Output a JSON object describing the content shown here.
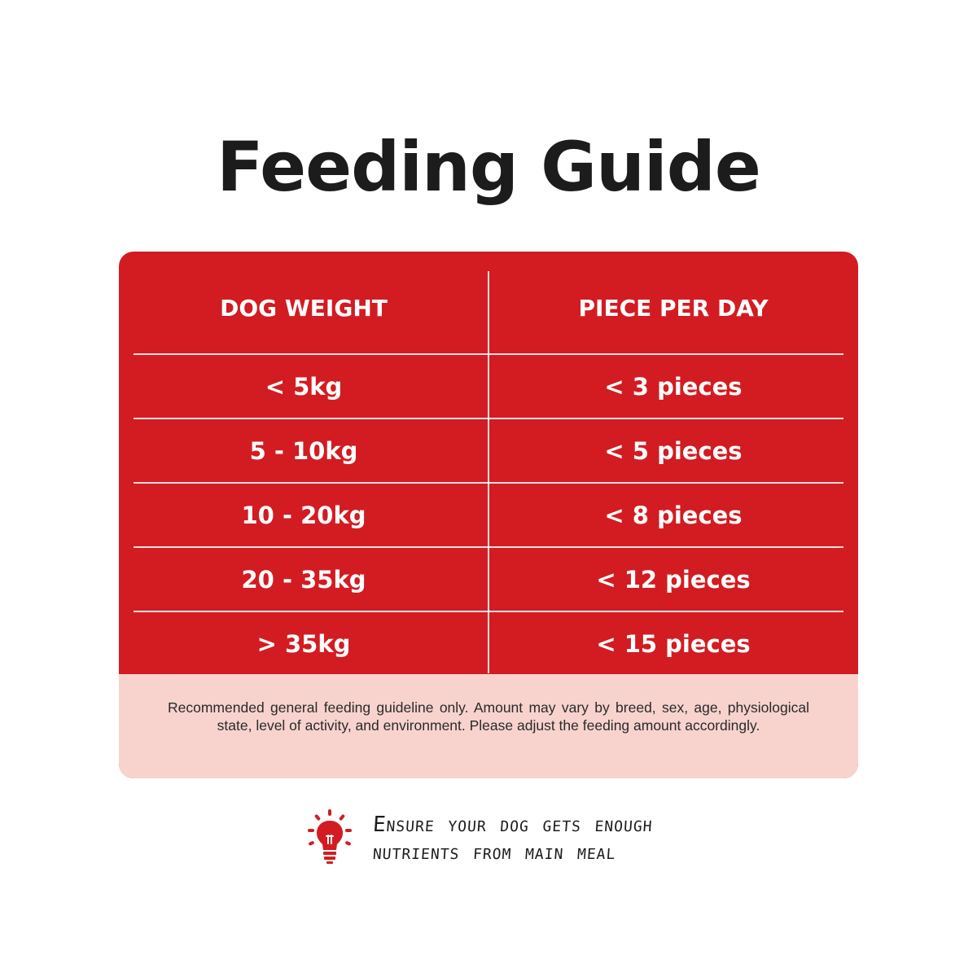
{
  "title": "Feeding Guide",
  "table": {
    "headers": [
      "DOG WEIGHT",
      "PIECE PER DAY"
    ],
    "rows": [
      [
        "< 5kg",
        "< 3 pieces"
      ],
      [
        "5 - 10kg",
        "< 5 pieces"
      ],
      [
        "10 - 20kg",
        "< 8 pieces"
      ],
      [
        "20 - 35kg",
        "< 12 pieces"
      ],
      [
        "> 35kg",
        "< 15 pieces"
      ]
    ]
  },
  "note": "Recommended general feeding guideline only. Amount may vary by breed, sex, age, physiological state, level of activity, and environment. Please adjust the feeding amount accordingly.",
  "tip": {
    "icon": "lightbulb-icon",
    "line1": "Ensure your dog gets enough",
    "line2": "nutrients from main meal"
  },
  "colors": {
    "accent": "#d21c22",
    "note_background": "#f8d3ce",
    "text": "#1c1c1c"
  }
}
